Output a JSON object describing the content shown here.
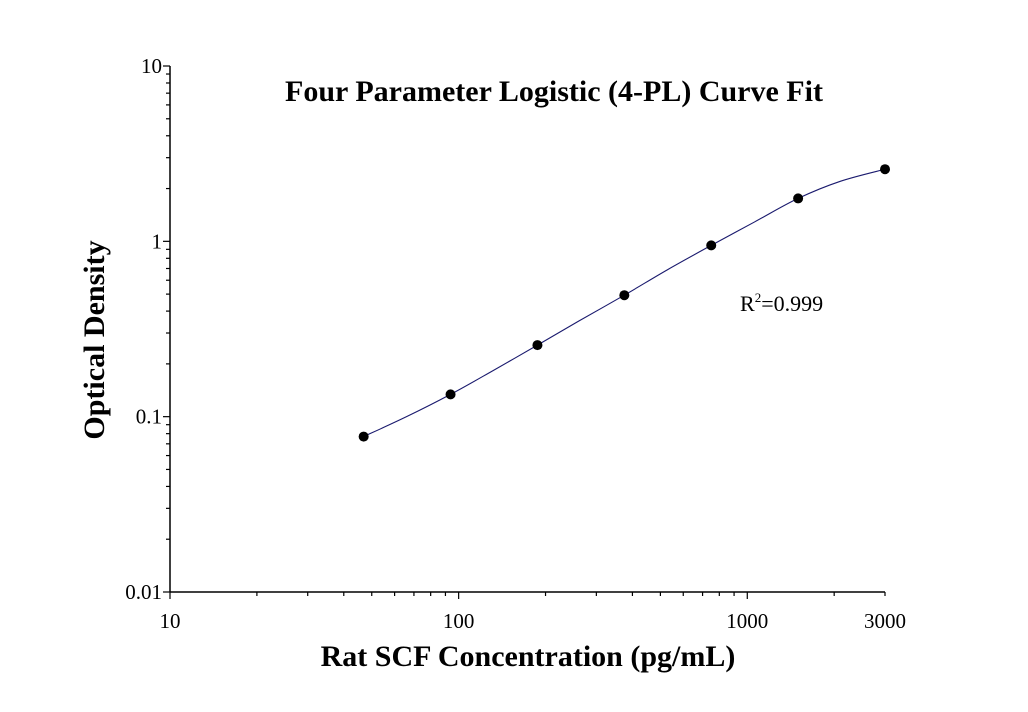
{
  "chart_data": {
    "type": "scatter",
    "title": "Four Parameter Logistic (4-PL) Curve Fit",
    "xlabel": "Rat SCF Concentration (pg/mL)",
    "ylabel": "Optical Density",
    "x_scale": "log",
    "y_scale": "log",
    "xlim": [
      10,
      3000
    ],
    "ylim": [
      0.01,
      10
    ],
    "x_tick_labels": [
      "10",
      "100",
      "1000",
      "3000"
    ],
    "y_tick_labels": [
      "0.01",
      "0.1",
      "1",
      "10"
    ],
    "grid": false,
    "series": [
      {
        "x": [
          46.875,
          93.75,
          187.5,
          375,
          750,
          1500,
          3000
        ],
        "y": [
          0.077,
          0.134,
          0.256,
          0.493,
          0.948,
          1.757,
          2.578
        ]
      }
    ],
    "fit_curve": {
      "model": "4PL",
      "points_x": [
        46.875,
        66,
        93.75,
        130,
        187.5,
        260,
        375,
        530,
        750,
        1060,
        1500,
        2100,
        3000
      ],
      "points_y": [
        0.077,
        0.1,
        0.134,
        0.181,
        0.256,
        0.35,
        0.493,
        0.69,
        0.948,
        1.29,
        1.757,
        2.2,
        2.578
      ]
    },
    "annotations": [
      {
        "base": "R",
        "sup": "2",
        "rest": "=0.999"
      }
    ],
    "colors": {
      "points": "#000000",
      "curve": "#1a1a6e",
      "axis": "#000000"
    }
  }
}
